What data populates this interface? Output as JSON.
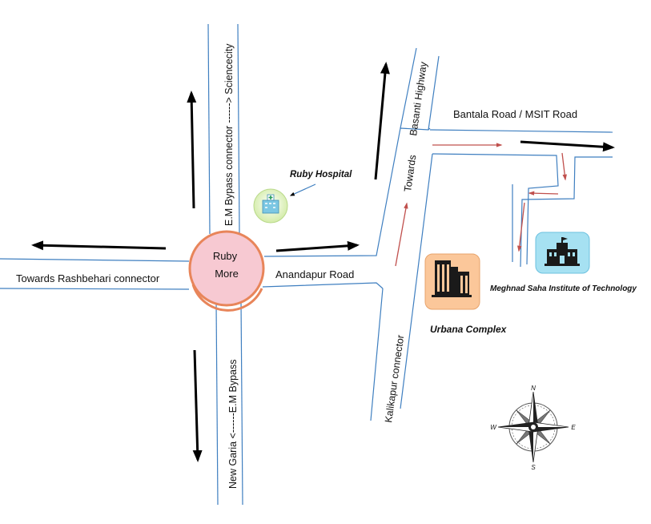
{
  "center": {
    "line1": "Ruby",
    "line2": "More"
  },
  "roads": {
    "em_bypass_north": "E.M Bypass connector ------> Sciencecity",
    "em_bypass_south": "New Garia <------E.M Bypass",
    "rashbehari": "Towards Rashbehari connector",
    "anandapur": "Anandapur Road",
    "kalikapur": "Kalikapur connector",
    "basanti": "Basanti Highway",
    "towards": "Towards",
    "bantala": "Bantala Road / MSIT Road"
  },
  "landmarks": {
    "ruby_hospital": "Ruby Hospital",
    "urbana": "Urbana Complex",
    "msit": "Meghnad Saha Institute of Technology"
  },
  "compass": {
    "n": "N",
    "s": "S",
    "e": "E",
    "w": "W"
  },
  "colors": {
    "road_line": "#3f7fc0",
    "route_arrow": "#c0504d",
    "direction_arrow": "#000000",
    "circle_fill": "#f7c9d2",
    "circle_ring": "#e8855a",
    "hospital_fill": "#e4f5c4",
    "urbana_fill": "#fbc79a",
    "msit_fill": "#a6e1f2"
  },
  "icons": {
    "hospital": "hospital-icon",
    "urbana": "buildings-icon",
    "msit": "school-icon",
    "compass": "compass-rose-icon"
  }
}
